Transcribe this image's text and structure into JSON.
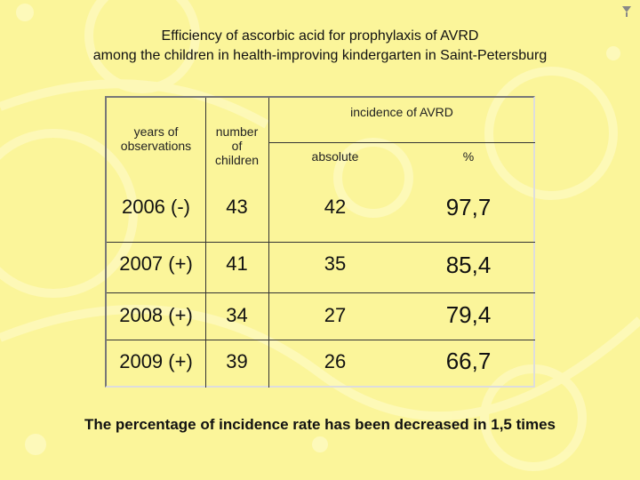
{
  "title": {
    "line1": "Efficiency of ascorbic acid for prophylaxis of AVRD",
    "line2": "among the children in health-improving kindergarten in Saint-Petersburg"
  },
  "table": {
    "header": {
      "years": [
        "years of",
        "observations"
      ],
      "children": [
        "number",
        "of",
        "children"
      ],
      "incidence": "incidence of AVRD",
      "absolute": "absolute",
      "percent": "%"
    },
    "rows": [
      {
        "year": "2006  (-)",
        "children": "43",
        "absolute": "42",
        "percent": "97,7"
      },
      {
        "year": "2007 (+)",
        "children": "41",
        "absolute": "35",
        "percent": "85,4"
      },
      {
        "year": "2008 (+)",
        "children": "34",
        "absolute": "27",
        "percent": "79,4"
      },
      {
        "year": "2009 (+)",
        "children": "39",
        "absolute": "26",
        "percent": "66,7"
      }
    ]
  },
  "footer": "The percentage of incidence rate has been decreased in 1,5 times",
  "colors": {
    "background": "#fbf59a",
    "decoration": "#fffbd0"
  }
}
